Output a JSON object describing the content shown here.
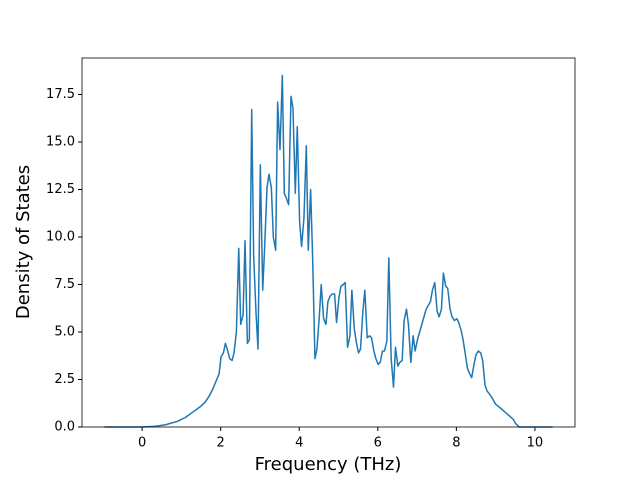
{
  "chart_data": {
    "type": "line",
    "xlabel": "Frequency (THz)",
    "ylabel": "Density of States",
    "x": [
      -0.96,
      -0.5,
      0,
      0.3,
      0.6,
      0.9,
      1.1,
      1.3,
      1.5,
      1.6,
      1.7,
      1.8,
      1.9,
      1.96,
      2.01,
      2.07,
      2.12,
      2.18,
      2.23,
      2.29,
      2.34,
      2.4,
      2.46,
      2.51,
      2.57,
      2.62,
      2.68,
      2.73,
      2.79,
      2.84,
      2.9,
      2.95,
      3.01,
      3.07,
      3.12,
      3.18,
      3.23,
      3.29,
      3.34,
      3.4,
      3.45,
      3.51,
      3.57,
      3.62,
      3.68,
      3.73,
      3.79,
      3.84,
      3.9,
      3.95,
      4.01,
      4.06,
      4.12,
      4.18,
      4.23,
      4.29,
      4.34,
      4.4,
      4.45,
      4.51,
      4.56,
      4.62,
      4.68,
      4.73,
      4.79,
      4.84,
      4.9,
      4.95,
      5.01,
      5.06,
      5.12,
      5.17,
      5.23,
      5.29,
      5.34,
      5.4,
      5.45,
      5.51,
      5.56,
      5.62,
      5.67,
      5.73,
      5.79,
      5.84,
      5.9,
      5.95,
      6.01,
      6.06,
      6.12,
      6.17,
      6.23,
      6.28,
      6.34,
      6.4,
      6.45,
      6.51,
      6.56,
      6.62,
      6.67,
      6.73,
      6.78,
      6.84,
      6.9,
      6.95,
      7.01,
      7.12,
      7.23,
      7.34,
      7.39,
      7.45,
      7.51,
      7.56,
      7.62,
      7.67,
      7.73,
      7.78,
      7.84,
      7.89,
      7.95,
      8.01,
      8.06,
      8.12,
      8.17,
      8.23,
      8.28,
      8.34,
      8.39,
      8.45,
      8.5,
      8.56,
      8.62,
      8.67,
      8.73,
      8.78,
      8.89,
      9.0,
      9.12,
      9.23,
      9.34,
      9.45,
      9.5,
      9.6,
      10.45
    ],
    "series": [
      {
        "name": "DOS",
        "color": "#1f77b4",
        "values": [
          0,
          0,
          0,
          0.03,
          0.12,
          0.3,
          0.5,
          0.8,
          1.1,
          1.3,
          1.6,
          2.0,
          2.5,
          2.8,
          3.7,
          3.9,
          4.4,
          4.0,
          3.6,
          3.5,
          3.9,
          5.0,
          9.4,
          5.4,
          5.9,
          9.8,
          4.4,
          4.6,
          16.7,
          9.0,
          6.0,
          4.1,
          13.8,
          7.2,
          9.5,
          12.6,
          13.3,
          12.6,
          10.0,
          9.3,
          17.1,
          14.6,
          18.5,
          12.3,
          12.0,
          11.7,
          17.4,
          16.8,
          12.3,
          15.8,
          10.8,
          9.5,
          11.0,
          14.8,
          9.3,
          12.5,
          9.0,
          3.6,
          4.1,
          5.8,
          7.5,
          5.7,
          5.4,
          6.6,
          6.9,
          7.0,
          7.0,
          5.5,
          6.8,
          7.4,
          7.5,
          7.6,
          4.2,
          4.8,
          7.2,
          5.2,
          4.5,
          3.9,
          4.1,
          6.1,
          7.2,
          4.7,
          4.8,
          4.7,
          4.0,
          3.6,
          3.3,
          3.4,
          4.0,
          4.0,
          4.5,
          8.9,
          3.6,
          2.1,
          4.2,
          3.2,
          3.4,
          3.5,
          5.6,
          6.2,
          5.4,
          3.4,
          4.8,
          4.0,
          4.6,
          5.4,
          6.2,
          6.6,
          7.2,
          7.6,
          6.1,
          5.8,
          6.2,
          8.1,
          7.4,
          7.3,
          6.2,
          5.8,
          5.6,
          5.7,
          5.5,
          5.1,
          4.6,
          3.8,
          3.1,
          2.8,
          2.6,
          3.3,
          3.8,
          4.0,
          3.9,
          3.5,
          2.2,
          1.9,
          1.6,
          1.2,
          1.0,
          0.8,
          0.6,
          0.4,
          0.2,
          0,
          0
        ]
      }
    ],
    "xlim": [
      -1.53,
      11.02
    ],
    "ylim": [
      0,
      19.42
    ],
    "xticks": [
      0,
      2,
      4,
      6,
      8,
      10
    ],
    "yticks": [
      {
        "value": 0,
        "label": "0.0"
      },
      2.5,
      {
        "value": 5,
        "label": "5.0"
      },
      7.5,
      {
        "value": 10,
        "label": "10.0"
      },
      12.5,
      {
        "value": 15,
        "label": "15.0"
      },
      17.5
    ],
    "grid": false
  }
}
